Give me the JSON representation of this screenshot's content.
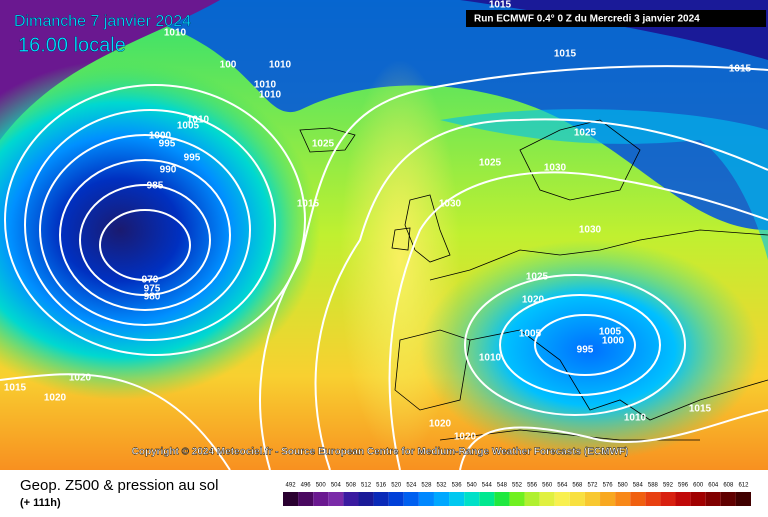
{
  "header": {
    "date": "Dimanche 7 janvier 2024",
    "time": "16.00 locale",
    "run": "Run ECMWF 0.4° 0 Z du Mercredi 3 janvier 2024"
  },
  "copyright": "Copyright © 2024 Meteociel.fr - Source European Centre for Medium-Range Weather Forecasts (ECMWF)",
  "footer": {
    "title": "Geop. Z500 & pression au sol",
    "subtitle": "(+ 111h)"
  },
  "colorbar": {
    "ticks": [
      492,
      496,
      500,
      504,
      508,
      512,
      516,
      520,
      524,
      528,
      532,
      536,
      540,
      544,
      548,
      552,
      556,
      560,
      564,
      568,
      572,
      576,
      580,
      584,
      588,
      592,
      596,
      600,
      604,
      608,
      612
    ],
    "colors": [
      "#2a0030",
      "#4a0860",
      "#6a1890",
      "#7a2aa8",
      "#3a1aa0",
      "#1a1a98",
      "#0a2ab8",
      "#0040d8",
      "#0060f0",
      "#0088ff",
      "#00a8ff",
      "#00c8f0",
      "#00e0c8",
      "#00e890",
      "#20e840",
      "#70f020",
      "#b0f030",
      "#e0f040",
      "#f8f050",
      "#f8e040",
      "#f8c830",
      "#f8a820",
      "#f88818",
      "#f06010",
      "#e84010",
      "#d82010",
      "#c00808",
      "#a00000",
      "#800000",
      "#600000",
      "#400000"
    ]
  },
  "isobar_labels": [
    "1015",
    "1010",
    "100",
    "1010",
    "1010",
    "1010",
    "1010",
    "1005",
    "1000",
    "995",
    "995",
    "990",
    "985",
    "970",
    "975",
    "980",
    "1015",
    "1015",
    "1025",
    "1025",
    "1025",
    "1030",
    "1015",
    "1030",
    "1030",
    "1025",
    "1020",
    "1005",
    "1005",
    "1000",
    "995",
    "1010",
    "1015",
    "1020",
    "1020",
    "1020",
    "1020",
    "1010",
    "1015"
  ]
}
